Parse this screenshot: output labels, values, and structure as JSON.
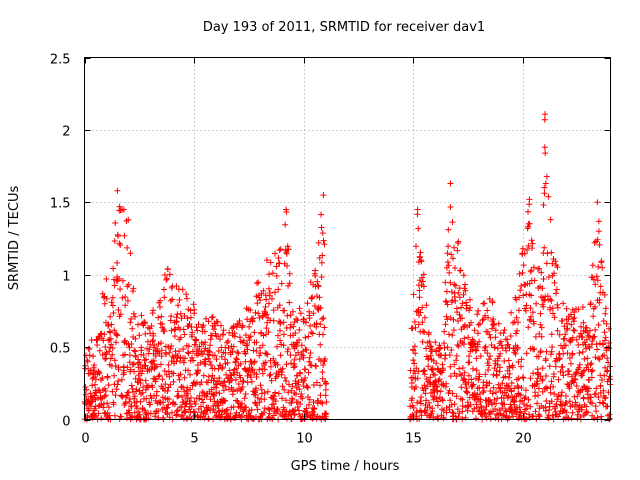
{
  "chart_data": {
    "type": "scatter",
    "title": "Day 193 of 2011, SRMTID for receiver dav1",
    "xlabel": "GPS time / hours",
    "ylabel": "SRMTID / TECUs",
    "xlim": [
      0,
      24
    ],
    "ylim": [
      0,
      2.5
    ],
    "xticks": [
      0,
      5,
      10,
      15,
      20
    ],
    "yticks": [
      0,
      0.5,
      1,
      1.5,
      2,
      2.5
    ],
    "xtick_labels": [
      "0",
      "5",
      "10",
      "15",
      "20"
    ],
    "ytick_labels": [
      "0",
      "0.5",
      "1",
      "1.5",
      "2",
      "2.5"
    ],
    "grid": true,
    "marker": "+",
    "color": "#ff0000",
    "series": [
      {
        "name": "dav1",
        "envelope": [
          [
            0.0,
            0.4
          ],
          [
            0.3,
            0.55
          ],
          [
            0.6,
            0.6
          ],
          [
            0.9,
            0.95
          ],
          [
            1.2,
            0.8
          ],
          [
            1.5,
            1.58
          ],
          [
            1.8,
            1.48
          ],
          [
            2.0,
            1.38
          ],
          [
            2.3,
            0.8
          ],
          [
            2.7,
            0.7
          ],
          [
            3.0,
            0.8
          ],
          [
            3.5,
            0.9
          ],
          [
            3.8,
            1.04
          ],
          [
            4.2,
            0.92
          ],
          [
            4.6,
            0.95
          ],
          [
            5.0,
            0.85
          ],
          [
            5.5,
            0.75
          ],
          [
            6.0,
            0.7
          ],
          [
            6.5,
            0.65
          ],
          [
            7.0,
            0.7
          ],
          [
            7.5,
            0.85
          ],
          [
            8.0,
            1.0
          ],
          [
            8.5,
            1.1
          ],
          [
            8.9,
            1.17
          ],
          [
            9.2,
            1.45
          ],
          [
            9.5,
            0.8
          ],
          [
            10.0,
            0.75
          ],
          [
            10.5,
            1.0
          ],
          [
            10.9,
            1.55
          ],
          [
            11.0,
            0.3
          ],
          [
            14.9,
            0.6
          ],
          [
            15.2,
            1.45
          ],
          [
            15.5,
            1.0
          ],
          [
            15.9,
            0.6
          ],
          [
            16.3,
            0.5
          ],
          [
            16.7,
            1.63
          ],
          [
            17.0,
            1.3
          ],
          [
            17.5,
            0.8
          ],
          [
            18.0,
            0.75
          ],
          [
            18.5,
            0.85
          ],
          [
            19.0,
            0.6
          ],
          [
            19.5,
            0.75
          ],
          [
            20.0,
            1.2
          ],
          [
            20.3,
            1.52
          ],
          [
            20.6,
            0.95
          ],
          [
            20.9,
            1.2
          ],
          [
            21.0,
            2.07
          ],
          [
            21.3,
            1.38
          ],
          [
            21.7,
            0.9
          ],
          [
            22.2,
            0.75
          ],
          [
            22.6,
            0.8
          ],
          [
            23.0,
            0.65
          ],
          [
            23.4,
            1.5
          ],
          [
            23.7,
            0.9
          ],
          [
            24.0,
            0.55
          ]
        ],
        "highlights": [
          [
            1.5,
            1.58
          ],
          [
            21.0,
            2.07
          ],
          [
            21.0,
            1.88
          ],
          [
            21.02,
            1.84
          ],
          [
            21.05,
            1.63
          ],
          [
            16.7,
            1.63
          ],
          [
            10.9,
            1.55
          ],
          [
            20.3,
            1.52
          ],
          [
            23.4,
            1.5
          ],
          [
            9.2,
            1.45
          ],
          [
            15.2,
            1.45
          ],
          [
            1.6,
            1.47
          ],
          [
            1.8,
            1.45
          ],
          [
            2.0,
            1.38
          ],
          [
            10.95,
            1.21
          ],
          [
            8.9,
            1.17
          ],
          [
            1.0,
            0.97
          ],
          [
            3.8,
            1.04
          ]
        ],
        "gaps": [
          [
            11.05,
            14.85
          ]
        ]
      }
    ]
  }
}
